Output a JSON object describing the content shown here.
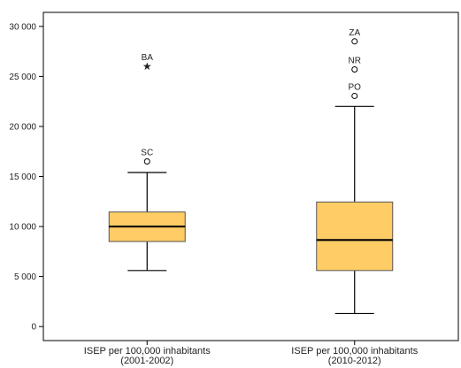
{
  "chart_data": {
    "type": "box",
    "title": "",
    "xlabel": "",
    "ylabel": "",
    "ylim": [
      -1400,
      31400
    ],
    "yticks": [
      0,
      5000,
      10000,
      15000,
      20000,
      25000,
      30000
    ],
    "ytick_labels": [
      "0",
      "5 000",
      "10 000",
      "15 000",
      "20 000",
      "25 000",
      "30 000"
    ],
    "grid": false,
    "box_color": "#ffcc66",
    "categories": [
      [
        "ISEP per 100,000 inhabitants",
        "(2001-2002)"
      ],
      [
        "ISEP per 100,000 inhabitants",
        "(2010-2012)"
      ]
    ],
    "boxes": [
      {
        "whisker_low": 5600,
        "q1": 8500,
        "median": 10000,
        "q3": 11450,
        "whisker_high": 15400,
        "outliers": [
          {
            "value": 16500,
            "label": "SC",
            "marker": "circle"
          },
          {
            "value": 26000,
            "label": "BA",
            "marker": "star"
          }
        ]
      },
      {
        "whisker_low": 1300,
        "q1": 5600,
        "median": 8650,
        "q3": 12450,
        "whisker_high": 22000,
        "outliers": [
          {
            "value": 23050,
            "label": "PO",
            "marker": "circle"
          },
          {
            "value": 25700,
            "label": "NR",
            "marker": "circle"
          },
          {
            "value": 28500,
            "label": "ZA",
            "marker": "circle"
          }
        ]
      }
    ]
  }
}
